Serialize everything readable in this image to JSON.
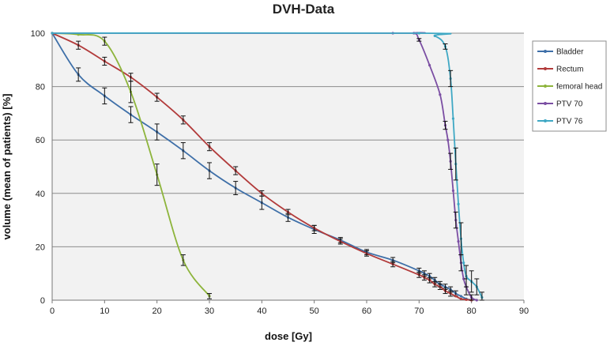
{
  "chart_data": {
    "type": "line",
    "title": "DVH-Data",
    "xlabel": "dose [Gy]",
    "ylabel": "volume (mean of patients) [%]",
    "xlim": [
      0,
      90
    ],
    "ylim": [
      0,
      100
    ],
    "xticks": [
      0,
      10,
      20,
      30,
      40,
      50,
      60,
      70,
      80,
      90
    ],
    "yticks": [
      0,
      20,
      40,
      60,
      80,
      100
    ],
    "grid": "horizontal",
    "legend_position": "right",
    "series": [
      {
        "name": "Bladder",
        "color": "#3e6fa8",
        "points": [
          [
            0,
            100
          ],
          [
            5,
            84.5
          ],
          [
            10,
            76.5
          ],
          [
            15,
            69.5
          ],
          [
            20,
            63
          ],
          [
            25,
            56
          ],
          [
            30,
            48.5
          ],
          [
            35,
            42
          ],
          [
            40,
            36.5
          ],
          [
            45,
            31
          ],
          [
            50,
            26.5
          ],
          [
            55,
            22.5
          ],
          [
            60,
            18
          ],
          [
            65,
            15
          ],
          [
            70,
            11
          ],
          [
            71,
            10
          ],
          [
            72,
            9
          ],
          [
            73,
            7.5
          ],
          [
            74,
            6
          ],
          [
            75,
            5
          ],
          [
            76,
            4
          ],
          [
            77,
            2.5
          ],
          [
            78,
            1.5
          ],
          [
            79,
            0.5
          ],
          [
            80,
            0
          ]
        ],
        "error": [
          [
            5,
            2.5
          ],
          [
            10,
            3
          ],
          [
            15,
            3
          ],
          [
            20,
            3
          ],
          [
            25,
            3
          ],
          [
            30,
            3
          ],
          [
            35,
            2.5
          ],
          [
            40,
            2.5
          ],
          [
            45,
            1.5
          ],
          [
            50,
            1.5
          ],
          [
            55,
            1
          ],
          [
            60,
            1
          ],
          [
            65,
            1
          ],
          [
            70,
            1
          ],
          [
            71,
            1
          ],
          [
            72,
            1
          ],
          [
            73,
            1
          ],
          [
            74,
            1
          ],
          [
            75,
            1
          ],
          [
            76,
            1
          ],
          [
            77,
            1
          ]
        ]
      },
      {
        "name": "Rectum",
        "color": "#b23b3b",
        "points": [
          [
            0,
            100
          ],
          [
            5,
            95.5
          ],
          [
            10,
            89.5
          ],
          [
            15,
            83.5
          ],
          [
            20,
            76
          ],
          [
            25,
            67.5
          ],
          [
            30,
            57.5
          ],
          [
            35,
            48.5
          ],
          [
            40,
            40
          ],
          [
            45,
            33
          ],
          [
            50,
            27
          ],
          [
            55,
            22
          ],
          [
            60,
            17.5
          ],
          [
            65,
            13.5
          ],
          [
            70,
            9.5
          ],
          [
            71,
            8.5
          ],
          [
            72,
            7.5
          ],
          [
            73,
            6
          ],
          [
            74,
            5
          ],
          [
            75,
            3.5
          ],
          [
            76,
            2.5
          ],
          [
            77,
            1.5
          ],
          [
            78,
            0.5
          ],
          [
            79,
            0.2
          ],
          [
            80,
            0
          ]
        ],
        "error": [
          [
            5,
            1.5
          ],
          [
            10,
            1.5
          ],
          [
            15,
            1.5
          ],
          [
            20,
            1.5
          ],
          [
            25,
            1.5
          ],
          [
            30,
            1.5
          ],
          [
            35,
            1.5
          ],
          [
            40,
            1
          ],
          [
            45,
            1
          ],
          [
            50,
            1
          ],
          [
            55,
            1
          ],
          [
            60,
            1
          ],
          [
            65,
            1
          ],
          [
            70,
            1
          ],
          [
            71,
            1
          ],
          [
            72,
            1
          ],
          [
            73,
            1
          ],
          [
            74,
            1
          ],
          [
            75,
            1
          ],
          [
            76,
            1
          ]
        ]
      },
      {
        "name": "femoral head",
        "color": "#8db43b",
        "points": [
          [
            0,
            100
          ],
          [
            5,
            99.5
          ],
          [
            10,
            97
          ],
          [
            15,
            78
          ],
          [
            20,
            47
          ],
          [
            25,
            15
          ],
          [
            30,
            1.5
          ]
        ],
        "error": [
          [
            10,
            1.5
          ],
          [
            15,
            4
          ],
          [
            20,
            4
          ],
          [
            25,
            2
          ],
          [
            30,
            1
          ]
        ]
      },
      {
        "name": "PTV 70",
        "color": "#7b4ea3",
        "points": [
          [
            0,
            100
          ],
          [
            65,
            100
          ],
          [
            69,
            100
          ],
          [
            70,
            97.5
          ],
          [
            72,
            88
          ],
          [
            74,
            77
          ],
          [
            75,
            65.5
          ],
          [
            75.5,
            60
          ],
          [
            76,
            52
          ],
          [
            76.5,
            41
          ],
          [
            77,
            30
          ],
          [
            77.5,
            22
          ],
          [
            78,
            14
          ],
          [
            78.5,
            8
          ],
          [
            79,
            5
          ],
          [
            80,
            1
          ],
          [
            81,
            0
          ]
        ],
        "error": [
          [
            70,
            0.5
          ],
          [
            75,
            1.5
          ],
          [
            76,
            3
          ],
          [
            77,
            3
          ],
          [
            78,
            3
          ],
          [
            79,
            3
          ],
          [
            80,
            1
          ]
        ]
      },
      {
        "name": "PTV 76",
        "color": "#3fa8c4",
        "points": [
          [
            0,
            100
          ],
          [
            70,
            100
          ],
          [
            73,
            99
          ],
          [
            75,
            95
          ],
          [
            76,
            83
          ],
          [
            76.5,
            68
          ],
          [
            77,
            51
          ],
          [
            77.5,
            36
          ],
          [
            78,
            23
          ],
          [
            78.5,
            14
          ],
          [
            79,
            9
          ],
          [
            80,
            7
          ],
          [
            81,
            5
          ],
          [
            82,
            1
          ]
        ],
        "error": [
          [
            75,
            1
          ],
          [
            76,
            3
          ],
          [
            77,
            6
          ],
          [
            78,
            6
          ],
          [
            79,
            4
          ],
          [
            80,
            4
          ],
          [
            81,
            3
          ],
          [
            82,
            2
          ]
        ]
      }
    ]
  }
}
